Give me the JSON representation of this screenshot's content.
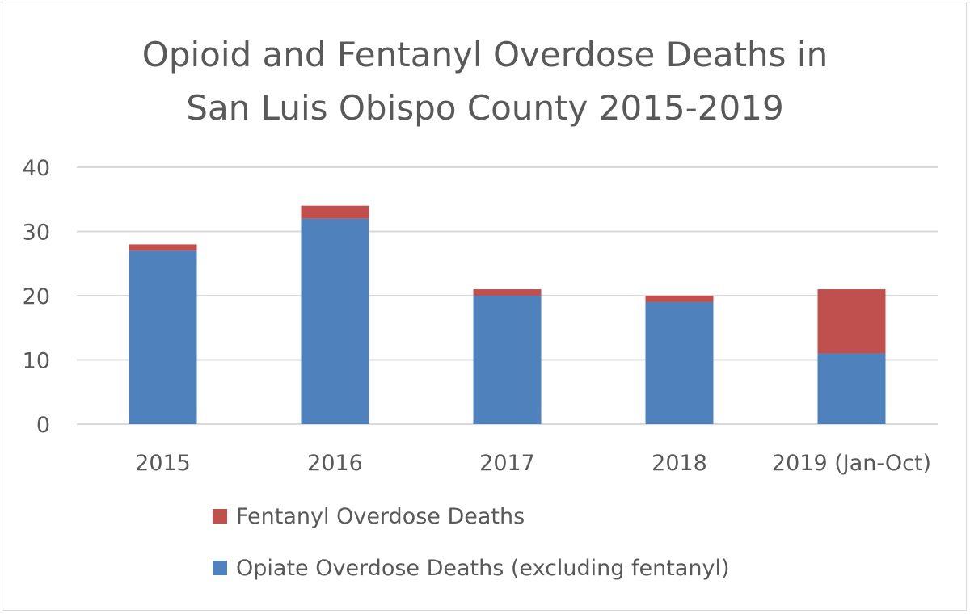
{
  "chart_data": {
    "type": "bar",
    "stacked": true,
    "title_lines": [
      "Opioid and Fentanyl Overdose Deaths in",
      "San Luis Obispo County 2015-2019"
    ],
    "categories": [
      "2015",
      "2016",
      "2017",
      "2018",
      "2019 (Jan-Oct)"
    ],
    "series": [
      {
        "name": "Opiate Overdose Deaths (excluding fentanyl)",
        "color": "#4f81bd",
        "values": [
          27,
          32,
          20,
          19,
          11
        ]
      },
      {
        "name": "Fentanyl Overdose Deaths",
        "color": "#c0504d",
        "values": [
          1,
          2,
          1,
          1,
          10
        ]
      }
    ],
    "ylim": [
      0,
      40
    ],
    "yticks": [
      0,
      10,
      20,
      30,
      40
    ],
    "grid": true,
    "legend_position": "bottom",
    "legend_order": [
      1,
      0
    ]
  }
}
